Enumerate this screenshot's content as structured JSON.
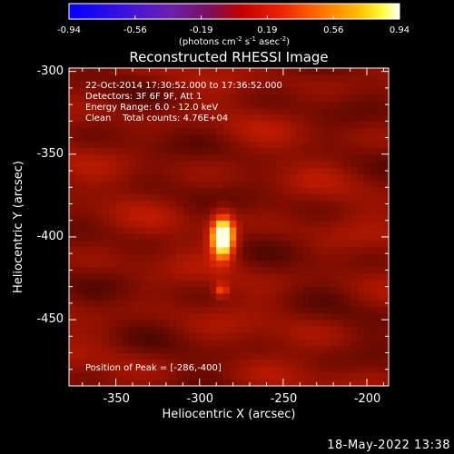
{
  "colorbar": {
    "ticks": [
      "-0.94",
      "-0.56",
      "-0.19",
      "0.19",
      "0.56",
      "0.94"
    ],
    "unit_main": "(photons cm",
    "unit_exp1": "-2",
    "unit_mid": " s",
    "unit_exp2": "-1",
    "unit_mid2": " asec",
    "unit_exp3": "-2",
    "unit_close": ")",
    "range": [
      -0.94,
      0.94
    ]
  },
  "info": {
    "time": "22-Oct-2014 17:30:52.000 to 17:36:52.000",
    "detectors": "Detectors: 3F 6F 9F, Att 1",
    "energy": "Energy Range: 6.0 - 12.0 keV",
    "clean": "Clean    Total counts: 4.76E+04",
    "peak": "Position of Peak = [-286,-400]"
  },
  "footer": {
    "date": "18-May-2022 13:38"
  },
  "chart_data": {
    "type": "heatmap",
    "title": "Reconstructed RHESSI Image",
    "xlabel": "Heliocentric X (arcsec)",
    "ylabel": "Heliocentric Y (arcsec)",
    "xlim": [
      -378,
      -187
    ],
    "ylim": [
      -490,
      -298
    ],
    "xticks": [
      -350,
      -300,
      -250,
      -200
    ],
    "yticks": [
      -300,
      -350,
      -400,
      -450
    ],
    "xtick_labels": [
      "-350",
      "-300",
      "-250",
      "-200"
    ],
    "ytick_labels": [
      "-300",
      "-350",
      "-400",
      "-450"
    ],
    "colormap": "hot (black-blue-purple-red-orange-yellow-white)",
    "background_level": 0.25,
    "peak": {
      "x": -286,
      "y": -400,
      "value": 0.94
    },
    "sources": [
      {
        "x": -286,
        "y": -400,
        "sigma_x": 5,
        "sigma_y": 9,
        "amplitude": 0.94
      },
      {
        "x": -287,
        "y": -432,
        "sigma_x": 3,
        "sigma_y": 3,
        "amplitude": 0.35
      }
    ],
    "pixel_size_arcsec": 4,
    "grid": false
  }
}
